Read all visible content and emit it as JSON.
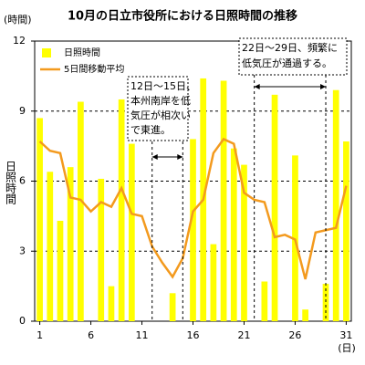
{
  "chart_data": {
    "type": "bar_line",
    "title": "10月の日立市役所における日照時間の推移",
    "y_unit": "(時間)",
    "y_label": "日照時間",
    "x_unit": "(日)",
    "categories": [
      "1",
      null,
      null,
      null,
      null,
      "6",
      null,
      null,
      null,
      null,
      "11",
      null,
      null,
      null,
      null,
      "16",
      null,
      null,
      null,
      null,
      "21",
      null,
      null,
      null,
      null,
      "26",
      null,
      null,
      null,
      null,
      "31"
    ],
    "series": [
      {
        "name": "日照時間",
        "type": "bar",
        "color": "#ffff00",
        "values": [
          8.7,
          6.4,
          4.3,
          6.6,
          9.4,
          0,
          6.1,
          1.5,
          9.5,
          7.6,
          0,
          0,
          0,
          1.2,
          0,
          7.8,
          10.4,
          3.3,
          10.3,
          7.4,
          6.7,
          0,
          1.7,
          9.7,
          0,
          7.1,
          0.5,
          0,
          1.6,
          9.9,
          7.7
        ]
      },
      {
        "name": "5日間移動平均",
        "type": "line",
        "color": "#f39a1e",
        "values": [
          7.7,
          7.3,
          7.2,
          5.3,
          5.2,
          4.7,
          5.1,
          4.9,
          5.7,
          4.6,
          4.5,
          3.2,
          2.5,
          1.9,
          2.7,
          4.7,
          5.2,
          7.2,
          7.8,
          7.6,
          5.5,
          5.2,
          5.1,
          3.6,
          3.7,
          3.5,
          1.8,
          3.8,
          3.9,
          4.0,
          5.8
        ]
      }
    ],
    "ylim": [
      0,
      12
    ],
    "yticks": [
      0,
      3,
      6,
      9,
      12
    ],
    "grid": true,
    "annotations": [
      {
        "lines": [
          "12日～15日、",
          "本州南岸を低",
          "気圧が相次い",
          "で東進。"
        ]
      },
      {
        "lines": [
          "22日～29日、頻繁に",
          "低気圧が通過する。"
        ]
      }
    ]
  }
}
